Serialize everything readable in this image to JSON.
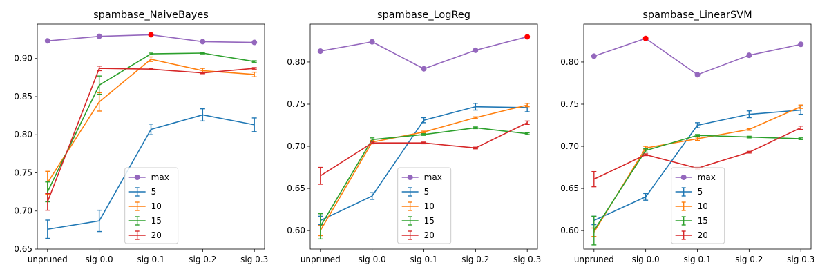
{
  "chart_data": [
    {
      "type": "line",
      "title": "spambase_NaiveBayes",
      "categories": [
        "unpruned",
        "sig 0.0",
        "sig 0.1",
        "sig 0.2",
        "sig 0.3"
      ],
      "ylim": [
        0.65,
        0.945
      ],
      "yticks": [
        0.65,
        0.7,
        0.75,
        0.8,
        0.85,
        0.9
      ],
      "grid": false,
      "legend": "lower-center",
      "max_series": {
        "name": "max",
        "color": "#9467bd",
        "values": [
          0.923,
          0.929,
          0.931,
          0.922,
          0.921
        ],
        "highlight_index": 2,
        "highlight_color": "#ff0000"
      },
      "series": [
        {
          "name": "5",
          "color": "#1f77b4",
          "values": [
            0.676,
            0.687,
            0.807,
            0.826,
            0.813
          ],
          "errors": [
            0.012,
            0.014,
            0.007,
            0.008,
            0.009
          ]
        },
        {
          "name": "10",
          "color": "#ff7f0e",
          "values": [
            0.737,
            0.843,
            0.899,
            0.884,
            0.879
          ],
          "errors": [
            0.015,
            0.012,
            0.003,
            0.003,
            0.003
          ]
        },
        {
          "name": "15",
          "color": "#2ca02c",
          "values": [
            0.725,
            0.865,
            0.906,
            0.907,
            0.896
          ],
          "errors": [
            0.013,
            0.012,
            0.001,
            0.001,
            0.001
          ]
        },
        {
          "name": "20",
          "color": "#d62728",
          "values": [
            0.712,
            0.887,
            0.886,
            0.881,
            0.887
          ],
          "errors": [
            0.011,
            0.003,
            0.001,
            0.001,
            0.001
          ]
        }
      ]
    },
    {
      "type": "line",
      "title": "spambase_LogReg",
      "categories": [
        "unpruned",
        "sig 0.0",
        "sig 0.1",
        "sig 0.2",
        "sig 0.3"
      ],
      "ylim": [
        0.578,
        0.845
      ],
      "yticks": [
        0.6,
        0.65,
        0.7,
        0.75,
        0.8
      ],
      "grid": false,
      "legend": "lower-center",
      "max_series": {
        "name": "max",
        "color": "#9467bd",
        "values": [
          0.813,
          0.824,
          0.792,
          0.814,
          0.83
        ],
        "highlight_index": 4,
        "highlight_color": "#ff0000"
      },
      "series": [
        {
          "name": "5",
          "color": "#1f77b4",
          "values": [
            0.612,
            0.641,
            0.731,
            0.747,
            0.746
          ],
          "errors": [
            0.005,
            0.004,
            0.003,
            0.004,
            0.005
          ]
        },
        {
          "name": "10",
          "color": "#ff7f0e",
          "values": [
            0.6,
            0.705,
            0.717,
            0.734,
            0.749
          ],
          "errors": [
            0.006,
            0.002,
            0.001,
            0.001,
            0.002
          ]
        },
        {
          "name": "15",
          "color": "#2ca02c",
          "values": [
            0.605,
            0.708,
            0.714,
            0.722,
            0.715
          ],
          "errors": [
            0.015,
            0.002,
            0.001,
            0.001,
            0.001
          ]
        },
        {
          "name": "20",
          "color": "#d62728",
          "values": [
            0.665,
            0.704,
            0.704,
            0.698,
            0.728
          ],
          "errors": [
            0.01,
            0.001,
            0.001,
            0.001,
            0.002
          ]
        }
      ]
    },
    {
      "type": "line",
      "title": "spambase_LinearSVM",
      "categories": [
        "unpruned",
        "sig 0.0",
        "sig 0.1",
        "sig 0.2",
        "sig 0.3"
      ],
      "ylim": [
        0.578,
        0.845
      ],
      "yticks": [
        0.6,
        0.65,
        0.7,
        0.75,
        0.8
      ],
      "grid": false,
      "legend": "lower-center",
      "max_series": {
        "name": "max",
        "color": "#9467bd",
        "values": [
          0.807,
          0.828,
          0.785,
          0.808,
          0.821
        ],
        "highlight_index": 1,
        "highlight_color": "#ff0000"
      },
      "series": [
        {
          "name": "5",
          "color": "#1f77b4",
          "values": [
            0.612,
            0.64,
            0.725,
            0.738,
            0.743
          ],
          "errors": [
            0.005,
            0.004,
            0.003,
            0.004,
            0.005
          ]
        },
        {
          "name": "10",
          "color": "#ff7f0e",
          "values": [
            0.598,
            0.698,
            0.709,
            0.72,
            0.747
          ],
          "errors": [
            0.005,
            0.002,
            0.002,
            0.001,
            0.002
          ]
        },
        {
          "name": "15",
          "color": "#2ca02c",
          "values": [
            0.6,
            0.695,
            0.713,
            0.711,
            0.709
          ],
          "errors": [
            0.017,
            0.002,
            0.001,
            0.001,
            0.001
          ]
        },
        {
          "name": "20",
          "color": "#d62728",
          "values": [
            0.661,
            0.69,
            0.674,
            0.693,
            0.722
          ],
          "errors": [
            0.009,
            0.001,
            0.001,
            0.001,
            0.002
          ]
        }
      ]
    }
  ]
}
